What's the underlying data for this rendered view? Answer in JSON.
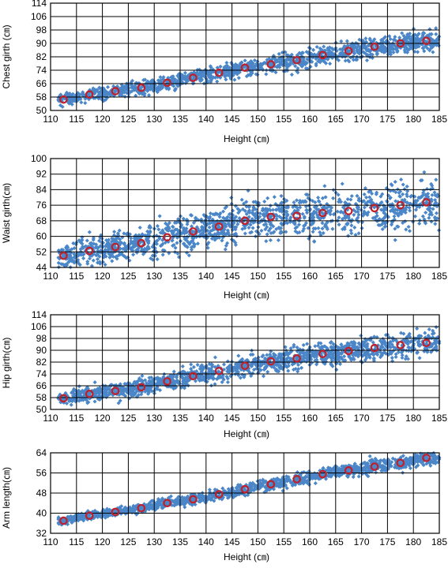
{
  "colors": {
    "scatter": "#4a86c8",
    "mean_marker": "#c0202a",
    "grid": "#000000"
  },
  "chart_data": [
    {
      "type": "scatter",
      "xlabel": "Height (㎝)",
      "ylabel": "Chest girth (㎝)",
      "xlim": [
        110,
        185
      ],
      "ylim": [
        50,
        114
      ],
      "x_ticks": [
        110,
        115,
        120,
        125,
        130,
        135,
        140,
        145,
        150,
        155,
        160,
        165,
        170,
        175,
        180,
        185
      ],
      "y_ticks": [
        50,
        58,
        66,
        74,
        82,
        90,
        98,
        106,
        114
      ],
      "grid": true,
      "series": [
        {
          "values": [
            [
              112.5,
              56.5
            ],
            [
              117.5,
              59.5
            ],
            [
              122.5,
              61.5
            ],
            [
              127.5,
              63.5
            ],
            [
              132.5,
              66.5
            ],
            [
              137.5,
              69.5
            ],
            [
              142.5,
              72.5
            ],
            [
              147.5,
              75.5
            ],
            [
              152.5,
              77.5
            ],
            [
              157.5,
              80
            ],
            [
              162.5,
              83
            ],
            [
              167.5,
              85.5
            ],
            [
              172.5,
              88
            ],
            [
              177.5,
              90
            ],
            [
              182.5,
              91.5
            ]
          ]
        }
      ]
    },
    {
      "type": "scatter",
      "xlabel": "Height (㎝)",
      "ylabel": "Waist girth(㎝)",
      "xlim": [
        110,
        185
      ],
      "ylim": [
        44,
        100
      ],
      "x_ticks": [
        110,
        115,
        120,
        125,
        130,
        135,
        140,
        145,
        150,
        155,
        160,
        165,
        170,
        175,
        180,
        185
      ],
      "y_ticks": [
        44,
        52,
        60,
        68,
        76,
        84,
        92,
        100
      ],
      "grid": true,
      "series": [
        {
          "values": [
            [
              112.5,
              50
            ],
            [
              117.5,
              52.5
            ],
            [
              122.5,
              54.5
            ],
            [
              127.5,
              56.5
            ],
            [
              132.5,
              59.5
            ],
            [
              137.5,
              62.5
            ],
            [
              142.5,
              65
            ],
            [
              147.5,
              68
            ],
            [
              152.5,
              70
            ],
            [
              157.5,
              70.5
            ],
            [
              162.5,
              72
            ],
            [
              167.5,
              73
            ],
            [
              172.5,
              74.5
            ],
            [
              177.5,
              76
            ],
            [
              182.5,
              77.5
            ]
          ]
        }
      ]
    },
    {
      "type": "scatter",
      "xlabel": "Height (㎝)",
      "ylabel": "Hip girth(㎝)",
      "xlim": [
        110,
        185
      ],
      "ylim": [
        50,
        114
      ],
      "x_ticks": [
        110,
        115,
        120,
        125,
        130,
        135,
        140,
        145,
        150,
        155,
        160,
        165,
        170,
        175,
        180,
        185
      ],
      "y_ticks": [
        50,
        58,
        66,
        74,
        82,
        90,
        98,
        106,
        114
      ],
      "grid": true,
      "series": [
        {
          "values": [
            [
              112.5,
              57.5
            ],
            [
              117.5,
              60.5
            ],
            [
              122.5,
              62.5
            ],
            [
              127.5,
              65
            ],
            [
              132.5,
              69
            ],
            [
              137.5,
              72.5
            ],
            [
              142.5,
              76
            ],
            [
              147.5,
              79.5
            ],
            [
              152.5,
              82.5
            ],
            [
              157.5,
              84.5
            ],
            [
              162.5,
              87.5
            ],
            [
              167.5,
              89.5
            ],
            [
              172.5,
              91.5
            ],
            [
              177.5,
              93.5
            ],
            [
              182.5,
              95
            ]
          ]
        }
      ]
    },
    {
      "type": "scatter",
      "xlabel": "Height (㎝)",
      "ylabel": "Arm length(㎝)",
      "xlim": [
        110,
        185
      ],
      "ylim": [
        32,
        64
      ],
      "x_ticks": [
        110,
        115,
        120,
        125,
        130,
        135,
        140,
        145,
        150,
        155,
        160,
        165,
        170,
        175,
        180,
        185
      ],
      "y_ticks": [
        32,
        40,
        48,
        56,
        64
      ],
      "grid": true,
      "series": [
        {
          "values": [
            [
              112.5,
              37
            ],
            [
              117.5,
              39
            ],
            [
              122.5,
              40.5
            ],
            [
              127.5,
              42
            ],
            [
              132.5,
              44
            ],
            [
              137.5,
              45.5
            ],
            [
              142.5,
              47.5
            ],
            [
              147.5,
              49.5
            ],
            [
              152.5,
              51.5
            ],
            [
              157.5,
              53.5
            ],
            [
              162.5,
              55.5
            ],
            [
              167.5,
              57
            ],
            [
              172.5,
              58.5
            ],
            [
              177.5,
              60
            ],
            [
              182.5,
              62
            ]
          ]
        }
      ]
    }
  ]
}
